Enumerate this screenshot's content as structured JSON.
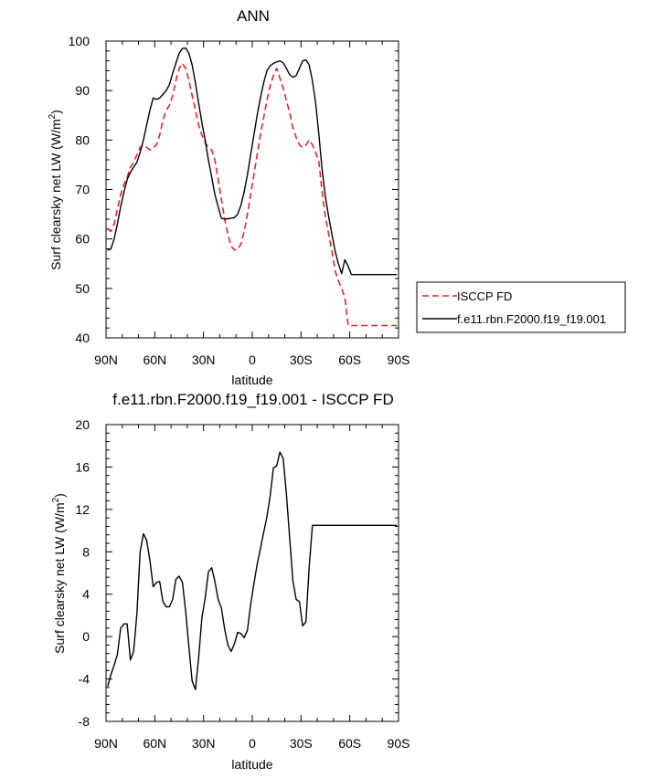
{
  "chart_data": [
    {
      "type": "line",
      "title": "ANN",
      "xlabel": "latitude",
      "ylabel": "Surf clearsky net LW (W/m2)",
      "ylabel_text": "Surf clearsky net LW (W/m",
      "ylabel_sup": "2",
      "ylabel_close": ")",
      "xlim": [
        -90,
        90
      ],
      "ylim": [
        40,
        100
      ],
      "x_ticks": [
        -90,
        -60,
        -30,
        0,
        30,
        60,
        90
      ],
      "x_tick_labels": [
        "90N",
        "60N",
        "30N",
        "0",
        "30S",
        "60S",
        "90S"
      ],
      "y_ticks": [
        40,
        50,
        60,
        70,
        80,
        90,
        100
      ],
      "y_tick_labels": [
        "40",
        "50",
        "60",
        "70",
        "80",
        "90",
        "100"
      ],
      "grid": false,
      "legend_position": "right-outside",
      "series": [
        {
          "name": "ISCCP FD",
          "color": "#e8242a",
          "dash": "dashed",
          "x": [
            -89,
            -87,
            -85,
            -83,
            -81,
            -79,
            -77,
            -75,
            -73,
            -71,
            -69,
            -67,
            -65,
            -63,
            -61,
            -59,
            -57,
            -55,
            -53,
            -51,
            -49,
            -47,
            -45,
            -43,
            -41,
            -39,
            -37,
            -35,
            -33,
            -31,
            -29,
            -27,
            -25,
            -23,
            -21,
            -19,
            -17,
            -15,
            -13,
            -11,
            -9,
            -7,
            -5,
            -3,
            -1,
            1,
            3,
            5,
            7,
            9,
            11,
            13,
            15,
            17,
            19,
            21,
            23,
            25,
            27,
            29,
            31,
            33,
            35,
            37,
            39,
            41,
            43,
            45,
            47,
            49,
            51,
            53,
            55,
            57,
            59,
            61,
            63,
            65,
            67,
            69,
            71,
            73,
            75,
            77,
            79,
            81,
            83,
            85,
            87,
            89
          ],
          "y": [
            62,
            61.5,
            63,
            66,
            69,
            71,
            72.5,
            74.5,
            75.5,
            77,
            78.5,
            79,
            78.5,
            78,
            78.5,
            79,
            81,
            84,
            86,
            87,
            89,
            92,
            94.5,
            95.5,
            94.5,
            92,
            89,
            86,
            83,
            81,
            79.5,
            78.5,
            78,
            76,
            72,
            68,
            64,
            61,
            58.5,
            57.8,
            57.8,
            59,
            61.5,
            65,
            69,
            73,
            77,
            81,
            84.5,
            88,
            91,
            93,
            94.5,
            92.5,
            90.5,
            88,
            85.5,
            82.5,
            80.5,
            79,
            78.5,
            79,
            80,
            79,
            77.5,
            75.5,
            69.5,
            64.5,
            61,
            57.5,
            53.5,
            51.5,
            50,
            48,
            42.5,
            42.5,
            42.5,
            42.5,
            42.5,
            42.5,
            42.5,
            42.5,
            42.5,
            42.5,
            42.5,
            42.5,
            42.5,
            42.5,
            42.5,
            42.5
          ]
        },
        {
          "name": "f.e11.rbn.F2000.f19_f19.001",
          "color": "#000000",
          "dash": "solid",
          "x": [
            -89,
            -87,
            -85,
            -83,
            -81,
            -79,
            -77,
            -75,
            -73,
            -71,
            -69,
            -67,
            -65,
            -63,
            -61,
            -59,
            -57,
            -55,
            -53,
            -51,
            -49,
            -47,
            -45,
            -43,
            -41,
            -39,
            -37,
            -35,
            -33,
            -31,
            -29,
            -27,
            -25,
            -23,
            -21,
            -19,
            -17,
            -15,
            -13,
            -11,
            -9,
            -7,
            -5,
            -3,
            -1,
            1,
            3,
            5,
            7,
            9,
            11,
            13,
            15,
            17,
            19,
            21,
            23,
            25,
            27,
            29,
            31,
            33,
            35,
            37,
            39,
            41,
            43,
            45,
            47,
            49,
            51,
            53,
            55,
            57,
            59,
            61,
            63,
            65,
            67,
            69,
            71,
            73,
            75,
            77,
            79,
            81,
            83,
            85,
            87,
            89
          ],
          "y": [
            57.7,
            58,
            60,
            63,
            66.5,
            69.5,
            72,
            73.5,
            74.5,
            75.5,
            77.5,
            80,
            83,
            86,
            88.5,
            88.2,
            88.5,
            89.2,
            90,
            91.2,
            93.5,
            95.5,
            97.5,
            98.5,
            98.6,
            97.5,
            95.2,
            91.5,
            87.5,
            83.5,
            80,
            76,
            72.5,
            69,
            66.5,
            64.2,
            64,
            64.1,
            64.2,
            64.3,
            65,
            66.8,
            69.5,
            73,
            77,
            81,
            85,
            88.5,
            91.5,
            94,
            95,
            95.5,
            95.8,
            96,
            95.6,
            94.5,
            93.2,
            92.7,
            93,
            94.5,
            96,
            96.2,
            95.2,
            92,
            87.5,
            81,
            74,
            68.5,
            64.5,
            61,
            57.5,
            55,
            53,
            55.8,
            54.5,
            52.8,
            52.8,
            52.8,
            52.8,
            52.8,
            52.8,
            52.8,
            52.8,
            52.8,
            52.8,
            52.8,
            52.8,
            52.8,
            52.8,
            52.8
          ]
        }
      ]
    },
    {
      "type": "line",
      "title": "f.e11.rbn.F2000.f19_f19.001 - ISCCP FD",
      "xlabel": "latitude",
      "ylabel": "Surf clearsky net LW (W/m2)",
      "ylabel_text": "Surf clearsky net LW (W/m",
      "ylabel_sup": "2",
      "ylabel_close": ")",
      "xlim": [
        -90,
        90
      ],
      "ylim": [
        -8,
        20
      ],
      "x_ticks": [
        -90,
        -60,
        -30,
        0,
        30,
        60,
        90
      ],
      "x_tick_labels": [
        "90N",
        "60N",
        "30N",
        "0",
        "30S",
        "60S",
        "90S"
      ],
      "y_ticks": [
        -8,
        -4,
        0,
        4,
        8,
        12,
        16,
        20
      ],
      "y_tick_labels": [
        "-8",
        "-4",
        "0",
        "4",
        "8",
        "12",
        "16",
        "20"
      ],
      "grid": false,
      "series": [
        {
          "color": "#000000",
          "dash": "solid",
          "x": [
            -89,
            -87,
            -85,
            -83,
            -81,
            -79,
            -77,
            -75,
            -73,
            -71,
            -69,
            -67,
            -65,
            -63,
            -61,
            -59,
            -57,
            -55,
            -53,
            -51,
            -49,
            -47,
            -45,
            -43,
            -41,
            -39,
            -37,
            -35,
            -33,
            -31,
            -29,
            -27,
            -25,
            -23,
            -21,
            -19,
            -17,
            -15,
            -13,
            -11,
            -9,
            -7,
            -5,
            -3,
            -1,
            1,
            3,
            5,
            7,
            9,
            11,
            13,
            15,
            17,
            19,
            21,
            23,
            25,
            27,
            29,
            31,
            33,
            35,
            37,
            39,
            41,
            43,
            45,
            47,
            49,
            51,
            53,
            55,
            57,
            59,
            61,
            63,
            65,
            67,
            69,
            71,
            73,
            75,
            77,
            79,
            81,
            83,
            85,
            87,
            89
          ],
          "y": [
            -4.7,
            -3.6,
            -2.7,
            -1.7,
            0.8,
            1.2,
            1.2,
            -2.2,
            -1.4,
            2.2,
            8,
            9.7,
            9.1,
            7.2,
            4.7,
            5.1,
            5.2,
            3.3,
            2.8,
            2.8,
            3.5,
            5.4,
            5.7,
            5.1,
            2.4,
            -1,
            -4.2,
            -5,
            -2,
            1.8,
            3.6,
            6.1,
            6.5,
            5.2,
            3.5,
            2.7,
            0.7,
            -0.8,
            -1.4,
            -0.7,
            0.4,
            0.3,
            -0.1,
            0.6,
            3,
            5,
            6.8,
            8.3,
            9.8,
            11.3,
            13.3,
            15.9,
            16.1,
            17.4,
            16.8,
            13.5,
            9.3,
            5.3,
            3.5,
            3.3,
            1,
            1.4,
            6.5,
            10.5,
            10.5,
            10.5,
            10.5,
            10.5,
            10.5,
            10.5,
            10.5,
            10.5,
            10.5,
            10.5,
            10.5,
            10.5,
            10.5,
            10.5,
            10.5,
            10.5,
            10.5,
            10.5,
            10.5,
            10.5,
            10.5,
            10.5,
            10.5,
            10.5,
            10.5,
            10.5
          ]
        }
      ]
    }
  ]
}
